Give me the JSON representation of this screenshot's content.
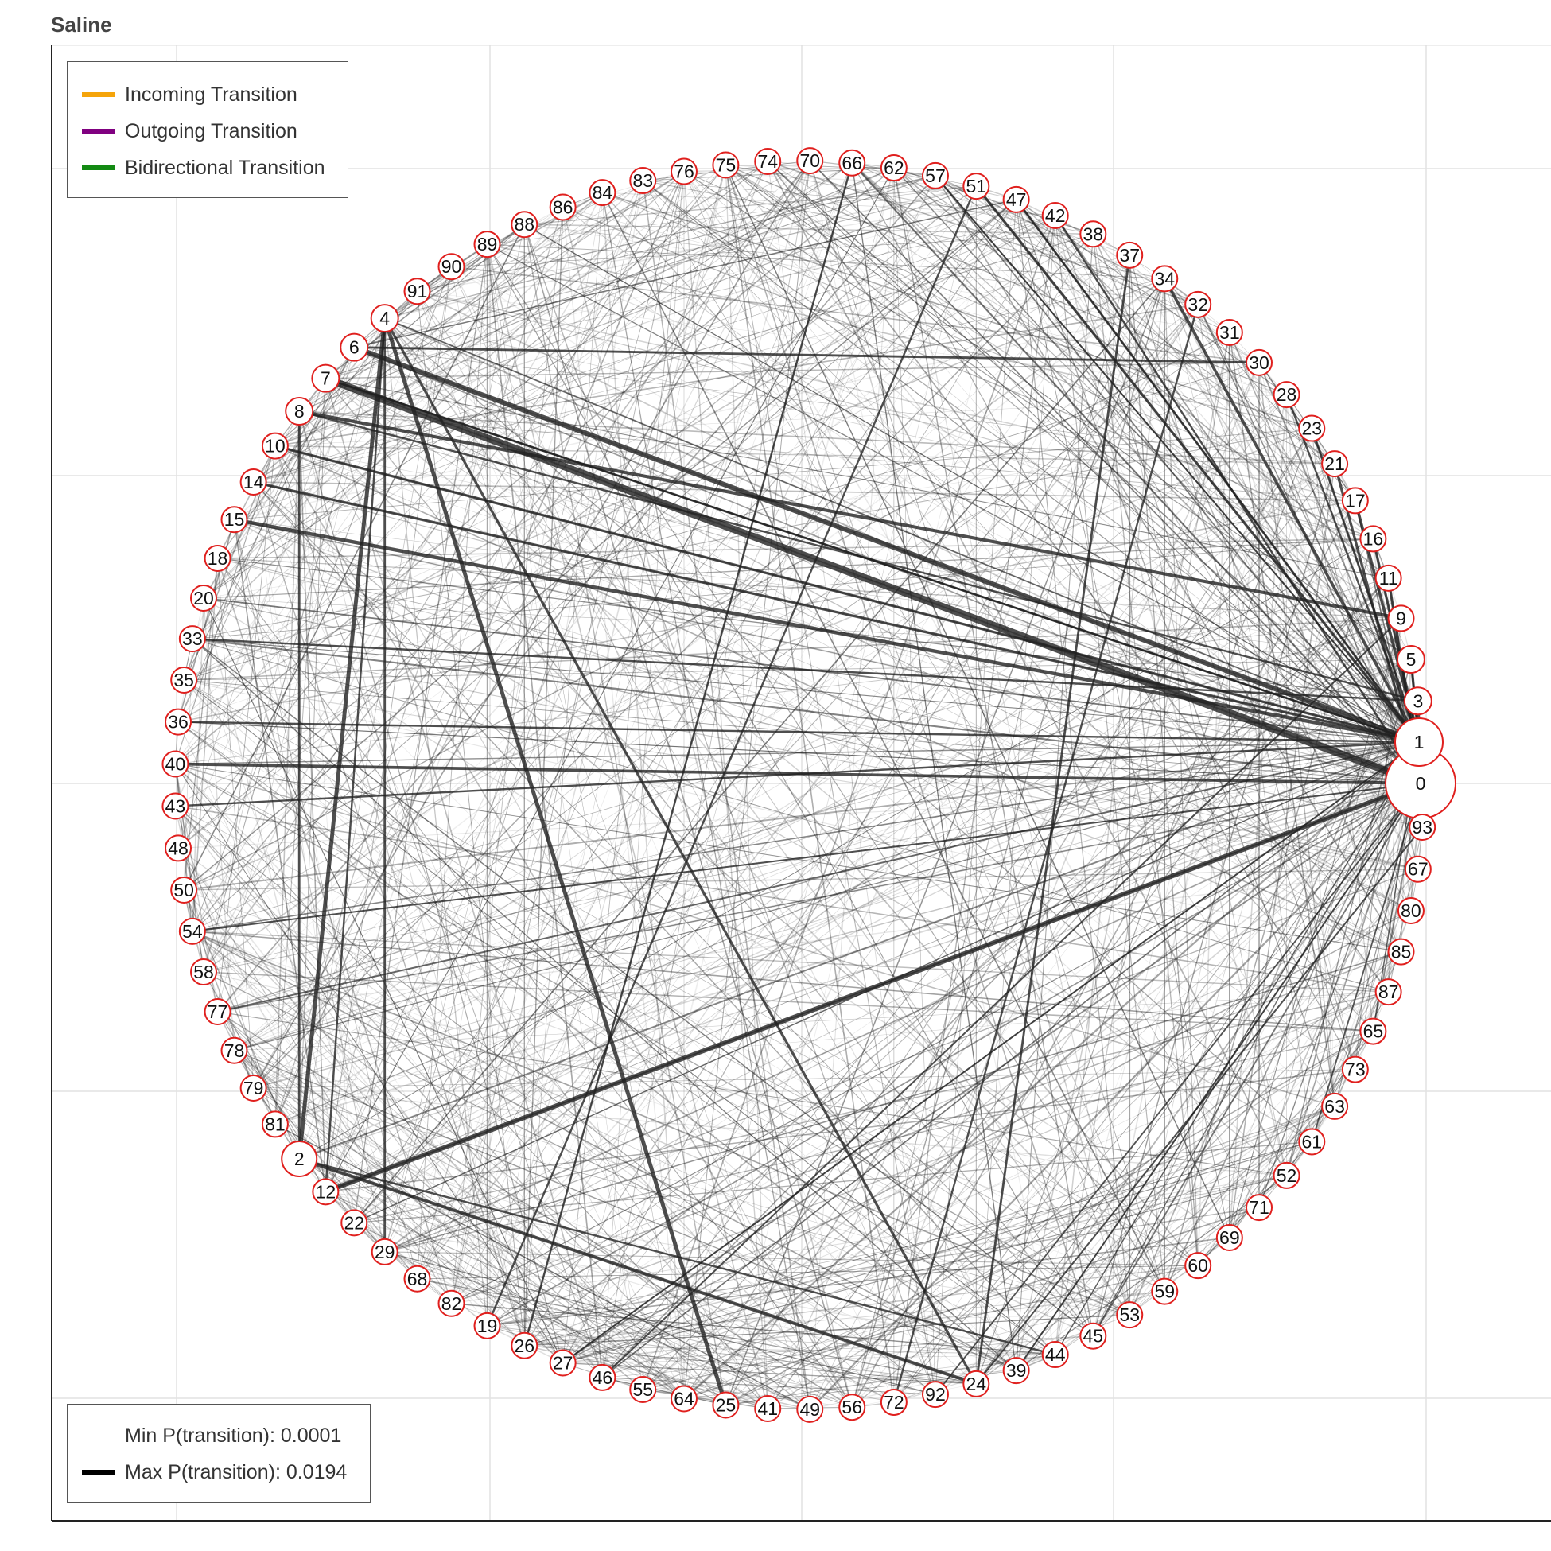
{
  "title": "Saline",
  "legend_transitions": [
    {
      "label": "Incoming Transition",
      "color": "#f5a40a"
    },
    {
      "label": "Outgoing Transition",
      "color": "#800080"
    },
    {
      "label": "Bidirectional Transition",
      "color": "#138a13"
    }
  ],
  "legend_weights": {
    "min_label": "Min P(transition): 0.0001",
    "max_label": "Max P(transition): 0.0194",
    "min_color": "#eeeeee",
    "max_color": "#000000"
  },
  "colors": {
    "node_stroke": "#e0201e",
    "edge": "#222222",
    "grid": "#e2e2e2"
  },
  "chart_data": {
    "type": "network",
    "nodes": [
      "0",
      "1",
      "3",
      "5",
      "9",
      "11",
      "16",
      "17",
      "21",
      "23",
      "28",
      "30",
      "31",
      "32",
      "34",
      "37",
      "38",
      "42",
      "47",
      "51",
      "57",
      "62",
      "66",
      "70",
      "74",
      "75",
      "76",
      "83",
      "84",
      "86",
      "88",
      "89",
      "90",
      "91",
      "4",
      "6",
      "7",
      "8",
      "10",
      "14",
      "15",
      "18",
      "20",
      "33",
      "35",
      "36",
      "40",
      "43",
      "48",
      "50",
      "54",
      "58",
      "77",
      "78",
      "79",
      "81",
      "2",
      "12",
      "22",
      "29",
      "68",
      "82",
      "19",
      "26",
      "27",
      "46",
      "55",
      "64",
      "25",
      "41",
      "49",
      "56",
      "72",
      "92",
      "24",
      "39",
      "44",
      "45",
      "53",
      "59",
      "60",
      "69",
      "71",
      "52",
      "61",
      "63",
      "73",
      "65",
      "87",
      "85",
      "80",
      "67",
      "93"
    ],
    "large_nodes": [
      "0",
      "1",
      "2"
    ],
    "strong_edges": [
      {
        "source": "7",
        "target": "0",
        "p": 0.0194
      },
      {
        "source": "6",
        "target": "1",
        "p": 0.012
      },
      {
        "source": "12",
        "target": "0",
        "p": 0.011
      },
      {
        "source": "4",
        "target": "25",
        "p": 0.009
      },
      {
        "source": "4",
        "target": "2",
        "p": 0.009
      },
      {
        "source": "15",
        "target": "1",
        "p": 0.008
      },
      {
        "source": "8",
        "target": "9",
        "p": 0.007
      },
      {
        "source": "2",
        "target": "24",
        "p": 0.007
      },
      {
        "source": "40",
        "target": "0",
        "p": 0.006
      },
      {
        "source": "4",
        "target": "24",
        "p": 0.005
      },
      {
        "source": "10",
        "target": "1",
        "p": 0.005
      },
      {
        "source": "14",
        "target": "1",
        "p": 0.005
      },
      {
        "source": "51",
        "target": "1",
        "p": 0.005
      },
      {
        "source": "34",
        "target": "1",
        "p": 0.006
      },
      {
        "source": "17",
        "target": "1",
        "p": 0.006
      },
      {
        "source": "6",
        "target": "30",
        "p": 0.004
      },
      {
        "source": "2",
        "target": "8",
        "p": 0.004
      },
      {
        "source": "4",
        "target": "29",
        "p": 0.004
      },
      {
        "source": "24",
        "target": "37",
        "p": 0.004
      },
      {
        "source": "21",
        "target": "0",
        "p": 0.005
      },
      {
        "source": "23",
        "target": "1",
        "p": 0.004
      },
      {
        "source": "11",
        "target": "0",
        "p": 0.005
      },
      {
        "source": "5",
        "target": "1",
        "p": 0.005
      },
      {
        "source": "3",
        "target": "0",
        "p": 0.006
      },
      {
        "source": "16",
        "target": "1",
        "p": 0.005
      },
      {
        "source": "47",
        "target": "1",
        "p": 0.004
      },
      {
        "source": "2",
        "target": "44",
        "p": 0.003
      },
      {
        "source": "19",
        "target": "51",
        "p": 0.003
      },
      {
        "source": "26",
        "target": "66",
        "p": 0.003
      },
      {
        "source": "72",
        "target": "32",
        "p": 0.003
      },
      {
        "source": "8",
        "target": "3",
        "p": 0.003
      },
      {
        "source": "7",
        "target": "1",
        "p": 0.004
      },
      {
        "source": "33",
        "target": "3",
        "p": 0.003
      },
      {
        "source": "36",
        "target": "1",
        "p": 0.003
      },
      {
        "source": "43",
        "target": "1",
        "p": 0.003
      },
      {
        "source": "54",
        "target": "0",
        "p": 0.002
      },
      {
        "source": "12",
        "target": "4",
        "p": 0.003
      },
      {
        "source": "28",
        "target": "1",
        "p": 0.003
      },
      {
        "source": "42",
        "target": "0",
        "p": 0.003
      },
      {
        "source": "57",
        "target": "1",
        "p": 0.002
      },
      {
        "source": "46",
        "target": "9",
        "p": 0.002
      },
      {
        "source": "24",
        "target": "93",
        "p": 0.002
      },
      {
        "source": "39",
        "target": "0",
        "p": 0.002
      },
      {
        "source": "27",
        "target": "1",
        "p": 0.002
      }
    ]
  }
}
